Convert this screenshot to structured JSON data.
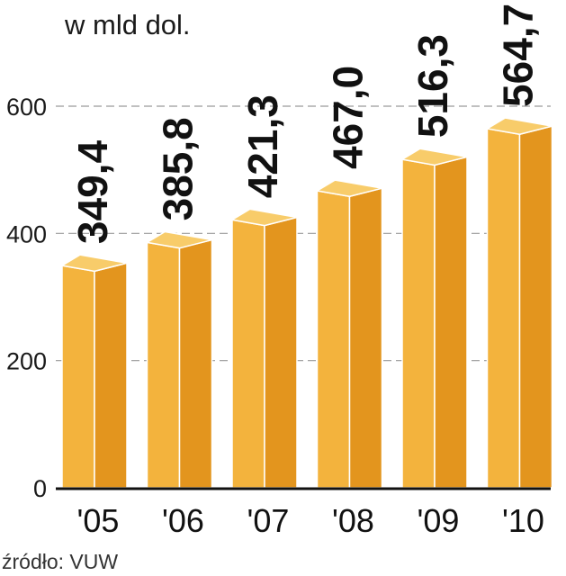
{
  "chart_data": {
    "type": "bar",
    "title": "",
    "unit_label": "w mld dol.",
    "categories": [
      "'05",
      "'06",
      "'07",
      "'08",
      "'09",
      "'10"
    ],
    "values": [
      349.4,
      385.8,
      421.3,
      467.0,
      516.3,
      564.7
    ],
    "value_labels": [
      "349,4",
      "385,8",
      "421,3",
      "467,0",
      "516,3",
      "564,7"
    ],
    "xlabel": "",
    "ylabel": "",
    "ylim": [
      0,
      600
    ],
    "yticks": [
      0,
      200,
      400,
      600
    ],
    "ytick_labels": [
      "0",
      "200",
      "400",
      "600"
    ],
    "grid": true,
    "legend": "none",
    "source": "źródło: VUW",
    "colors": {
      "bar_front": "#F3B33D",
      "bar_side": "#E3951E",
      "bar_top": "#F8CC6A",
      "grid": "#9a9a9a",
      "axis": "#111111"
    }
  }
}
